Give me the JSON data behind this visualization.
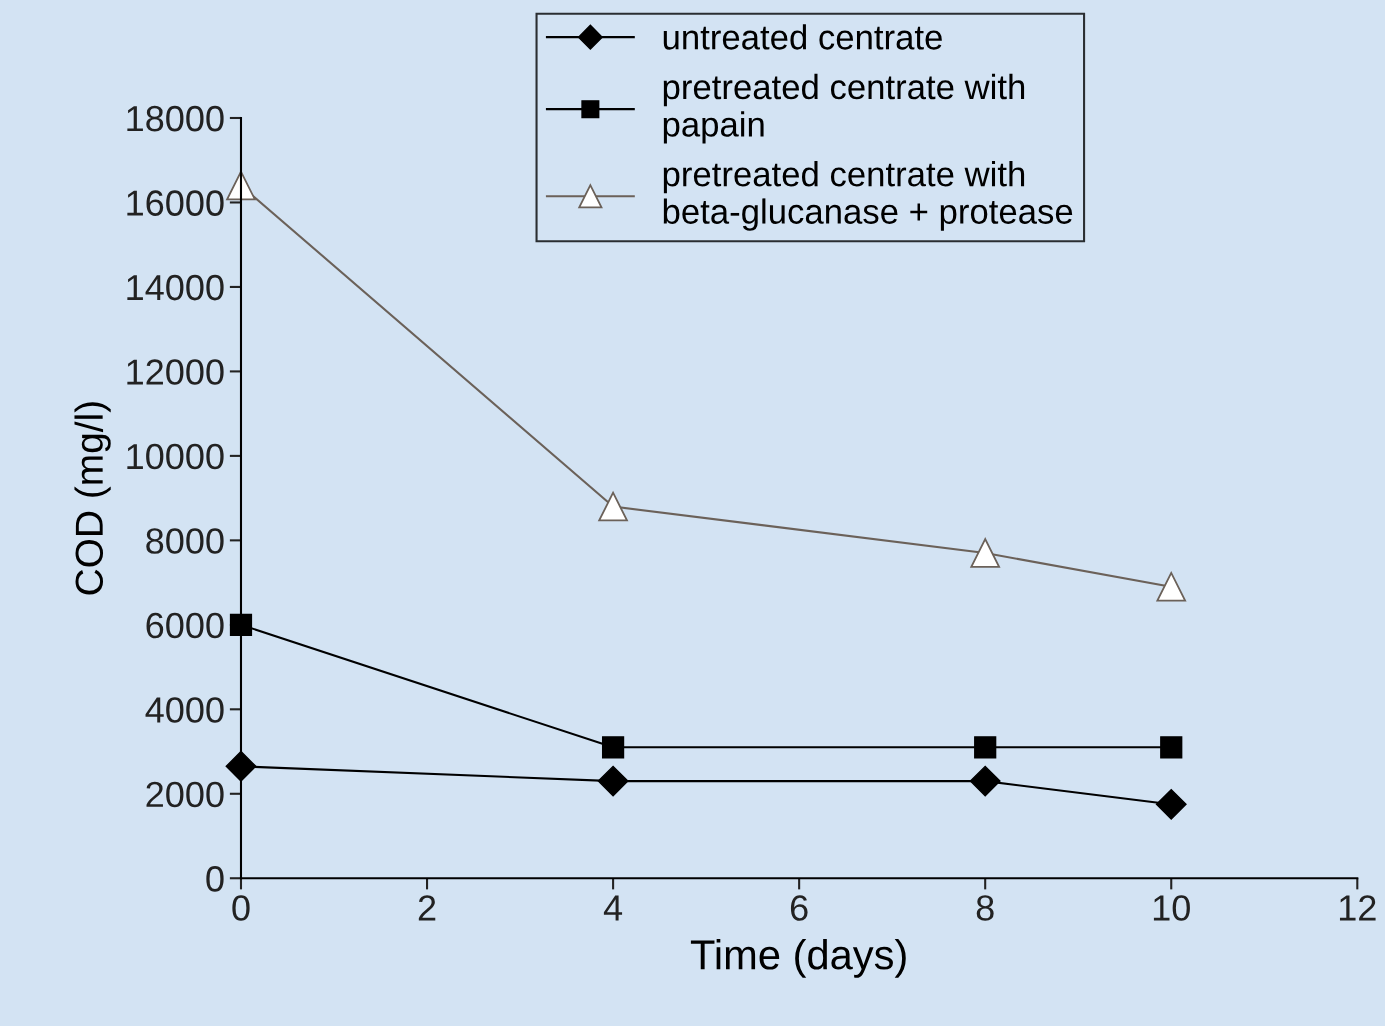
{
  "chart_data": {
    "type": "line",
    "xlabel": "Time (days)",
    "ylabel": "COD (mg/l)",
    "x": [
      0,
      4,
      8,
      10
    ],
    "series": [
      {
        "name": "untreated centrate",
        "color": "#000000",
        "marker": "diamond",
        "values": [
          2650,
          2300,
          2300,
          1750
        ]
      },
      {
        "name": "pretreated centrate with\npapain",
        "color": "#000000",
        "marker": "square",
        "values": [
          6000,
          3100,
          3100,
          3100
        ]
      },
      {
        "name": "pretreated centrate with\nbeta-glucanase + protease",
        "color": "#6b6159",
        "marker": "triangle",
        "values": [
          16400,
          8800,
          7700,
          6900
        ]
      }
    ],
    "xlim": [
      0,
      12
    ],
    "xticks": [
      0,
      2,
      4,
      6,
      8,
      10,
      12
    ],
    "ylim": [
      0,
      18000
    ],
    "yticks": [
      0,
      2000,
      4000,
      6000,
      8000,
      10000,
      12000,
      14000,
      16000,
      18000
    ],
    "grid": false,
    "legend": "top"
  }
}
